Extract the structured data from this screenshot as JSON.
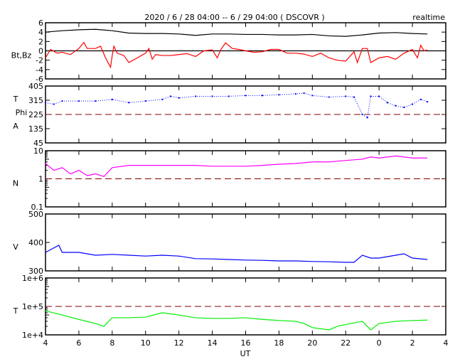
{
  "chart_data": {
    "type": "line",
    "title": "2020 / 6 / 28   04:00 --  6 / 29  04:00 ( DSCOVR )",
    "mode_label": "realtime",
    "xlabel": "UT",
    "xlim": [
      4,
      28
    ],
    "x_ticks": [
      {
        "v": 4,
        "l": "4"
      },
      {
        "v": 6,
        "l": "6"
      },
      {
        "v": 8,
        "l": "8"
      },
      {
        "v": 10,
        "l": "10"
      },
      {
        "v": 12,
        "l": "12"
      },
      {
        "v": 14,
        "l": "14"
      },
      {
        "v": 16,
        "l": "16"
      },
      {
        "v": 18,
        "l": "18"
      },
      {
        "v": 20,
        "l": "20"
      },
      {
        "v": 22,
        "l": "22"
      },
      {
        "v": 24,
        "l": "0"
      },
      {
        "v": 26,
        "l": "2"
      },
      {
        "v": 28,
        "l": "4"
      }
    ],
    "colors": {
      "bt": "#000000",
      "bz": "#ff0000",
      "phi": "#0000ff",
      "n": "#ff00ff",
      "v": "#0000ff",
      "t": "#00ee00",
      "ref": "#800000"
    },
    "panels": [
      {
        "id": "bt-bz",
        "ylabel": [
          "Bt,Bz"
        ],
        "scale": "linear",
        "ylim": [
          -6,
          6
        ],
        "yticks": [
          {
            "v": 6,
            "l": "6"
          },
          {
            "v": 4,
            "l": "4"
          },
          {
            "v": 2,
            "l": "2"
          },
          {
            "v": 0,
            "l": "0"
          },
          {
            "v": -2,
            "l": "-2"
          },
          {
            "v": -4,
            "l": "-4"
          },
          {
            "v": -6,
            "l": "-6"
          }
        ],
        "zero_line": 0,
        "series": [
          {
            "name": "Bt",
            "color": "bt",
            "style": "line",
            "x": [
              4,
              5,
              6,
              7,
              8,
              9,
              10,
              11,
              12,
              13,
              14,
              15,
              16,
              17,
              18,
              19,
              20,
              21,
              22,
              23,
              24,
              25,
              26,
              26.9
            ],
            "y": [
              4.0,
              4.3,
              4.5,
              4.6,
              4.3,
              3.8,
              3.7,
              3.7,
              3.6,
              3.3,
              3.6,
              3.6,
              3.5,
              3.5,
              3.4,
              3.4,
              3.5,
              3.2,
              3.1,
              3.4,
              3.8,
              3.9,
              3.7,
              3.6
            ]
          },
          {
            "name": "Bz",
            "color": "bz",
            "style": "line",
            "x": [
              4,
              4.3,
              4.7,
              5,
              5.5,
              6,
              6.3,
              6.5,
              7,
              7.3,
              7.6,
              7.9,
              8,
              8.1,
              8.3,
              8.7,
              9,
              9.5,
              10,
              10.2,
              10.4,
              10.6,
              11,
              11.5,
              12,
              12.5,
              13,
              13.5,
              14,
              14.3,
              14.5,
              14.8,
              15.2,
              15.6,
              16,
              16.5,
              17,
              17.5,
              18,
              18.5,
              19,
              19.5,
              20,
              20.5,
              21,
              21.5,
              22,
              22.5,
              22.7,
              23,
              23.3,
              23.5,
              24,
              24.5,
              25,
              25.5,
              26,
              26.3,
              26.5,
              26.7,
              26.9
            ],
            "y": [
              -1.5,
              0.3,
              -0.5,
              -0.3,
              -0.8,
              0.5,
              1.8,
              0.5,
              0.5,
              1,
              -1.5,
              -3.5,
              -1,
              1,
              -0.5,
              -1,
              -2.5,
              -1.5,
              -0.5,
              0.5,
              -1.8,
              -0.8,
              -1,
              -1,
              -0.8,
              -0.6,
              -1.2,
              0,
              0.2,
              -1.5,
              0.2,
              1.7,
              0.5,
              0.3,
              0,
              -0.3,
              -0.2,
              0.3,
              0.3,
              -0.5,
              -0.5,
              -0.7,
              -1.2,
              -0.5,
              -1.5,
              -2,
              -2.2,
              -0.2,
              -2.5,
              0.5,
              0.5,
              -2.5,
              -1.5,
              -1.2,
              -1.8,
              -0.5,
              0.3,
              -1.5,
              1.2,
              0,
              0.2
            ]
          }
        ]
      },
      {
        "id": "phi",
        "ylabel": [
          "T",
          "Phi",
          "A"
        ],
        "scale": "linear",
        "ylim": [
          45,
          405
        ],
        "yticks": [
          {
            "v": 405,
            "l": "405"
          },
          {
            "v": 315,
            "l": "315"
          },
          {
            "v": 225,
            "l": "225"
          },
          {
            "v": 135,
            "l": "135"
          },
          {
            "v": 45,
            "l": "45"
          }
        ],
        "ref_line": 225,
        "series": [
          {
            "name": "Phi",
            "color": "phi",
            "style": "dots",
            "x": [
              4,
              4.5,
              5,
              6,
              7,
              8,
              9,
              10,
              11,
              11.5,
              12,
              13,
              14,
              15,
              16,
              17,
              18,
              19,
              19.5,
              20,
              21,
              22,
              22.5,
              23,
              23.3,
              23.5,
              24,
              24.5,
              25,
              25.5,
              26,
              26.5,
              26.9
            ],
            "y": [
              300,
              290,
              310,
              310,
              310,
              320,
              300,
              310,
              320,
              340,
              330,
              340,
              340,
              340,
              345,
              345,
              350,
              355,
              360,
              345,
              335,
              340,
              335,
              225,
              205,
              340,
              340,
              300,
              280,
              270,
              290,
              320,
              305
            ]
          }
        ]
      },
      {
        "id": "n",
        "ylabel": [
          "N"
        ],
        "scale": "log",
        "ylim": [
          0.1,
          10
        ],
        "yticks": [
          {
            "v": 10,
            "l": "10"
          },
          {
            "v": 1,
            "l": "1"
          },
          {
            "v": 0.1,
            "l": "0.1"
          }
        ],
        "ref_line": 1,
        "series": [
          {
            "name": "N",
            "color": "n",
            "style": "line",
            "x": [
              4,
              4.5,
              5,
              5.5,
              6,
              6.5,
              7,
              7.5,
              8,
              9,
              10,
              11,
              12,
              13,
              14,
              15,
              16,
              17,
              18,
              19,
              20,
              21,
              22,
              23,
              23.5,
              24,
              25,
              26,
              26.9
            ],
            "y": [
              3.5,
              2,
              2.5,
              1.5,
              2,
              1.3,
              1.5,
              1.2,
              2.5,
              3,
              3,
              3,
              3,
              3,
              2.8,
              2.8,
              2.8,
              3,
              3.3,
              3.5,
              4,
              4,
              4.5,
              5,
              6,
              5.5,
              6.5,
              5.5,
              5.5
            ]
          }
        ]
      },
      {
        "id": "v",
        "ylabel": [
          "V"
        ],
        "scale": "linear",
        "ylim": [
          300,
          500
        ],
        "yticks": [
          {
            "v": 500,
            "l": "500"
          },
          {
            "v": 400,
            "l": "400"
          },
          {
            "v": 300,
            "l": "300"
          }
        ],
        "series": [
          {
            "name": "V",
            "color": "v",
            "style": "line",
            "x": [
              4,
              4.8,
              5,
              6,
              7,
              8,
              9,
              10,
              11,
              12,
              13,
              14,
              15,
              16,
              17,
              18,
              19,
              20,
              21,
              22,
              22.5,
              23,
              23.5,
              24,
              25,
              25.5,
              26,
              26.9
            ],
            "y": [
              365,
              390,
              365,
              365,
              355,
              358,
              355,
              352,
              355,
              352,
              343,
              342,
              340,
              338,
              337,
              335,
              335,
              333,
              332,
              330,
              330,
              355,
              345,
              345,
              355,
              360,
              345,
              340
            ]
          }
        ]
      },
      {
        "id": "t",
        "ylabel": [
          "T"
        ],
        "scale": "log",
        "ylim": [
          10000,
          1000000
        ],
        "yticks": [
          {
            "v": 1000000,
            "l": "1e+6"
          },
          {
            "v": 100000,
            "l": "1e+5"
          },
          {
            "v": 10000,
            "l": "1e+4"
          }
        ],
        "ref_line": 100000,
        "series": [
          {
            "name": "T",
            "color": "t",
            "style": "line",
            "x": [
              4,
              5,
              6,
              7,
              7.5,
              8,
              9,
              10,
              11,
              12,
              13,
              14,
              15,
              16,
              17,
              18,
              19,
              19.5,
              20,
              21,
              21.5,
              22,
              23,
              23.5,
              24,
              25,
              26,
              26.9
            ],
            "y": [
              70000,
              50000,
              35000,
              25000,
              20000,
              40000,
              40000,
              42000,
              60000,
              50000,
              40000,
              38000,
              38000,
              40000,
              35000,
              32000,
              30000,
              25000,
              18000,
              15000,
              20000,
              23000,
              30000,
              15000,
              25000,
              30000,
              32000,
              33000
            ]
          }
        ]
      }
    ]
  }
}
